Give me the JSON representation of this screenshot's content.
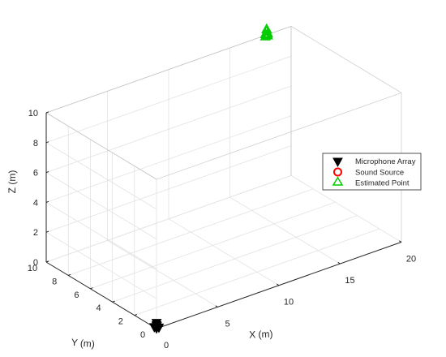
{
  "chart_data": {
    "type": "scatter",
    "subtype": "3d",
    "title": "",
    "xlabel": "X (m)",
    "ylabel": "Y (m)",
    "zlabel": "Z (m)",
    "xlim": [
      0,
      20
    ],
    "ylim": [
      0,
      10
    ],
    "zlim": [
      0,
      10
    ],
    "xticks": [
      "0",
      "5",
      "10",
      "15",
      "20"
    ],
    "yticks": [
      "0",
      "2",
      "4",
      "6",
      "8",
      "10"
    ],
    "zticks": [
      "0",
      "2",
      "4",
      "6",
      "8",
      "10"
    ],
    "grid": true,
    "box": true,
    "legend_position": "right",
    "series": [
      {
        "name": "Microphone Array",
        "marker": "triangle-down",
        "color": "#000000",
        "filled": true,
        "points": [
          {
            "x": 0.0,
            "y": 0.0,
            "z": 0.0
          },
          {
            "x": 0.2,
            "y": 0.0,
            "z": 0.0
          },
          {
            "x": 0.0,
            "y": 0.2,
            "z": 0.0
          },
          {
            "x": 0.2,
            "y": 0.2,
            "z": 0.0
          },
          {
            "x": 0.1,
            "y": 0.1,
            "z": 0.3
          },
          {
            "x": 0.1,
            "y": 0.1,
            "z": 0.15
          }
        ]
      },
      {
        "name": "Sound Source",
        "marker": "circle",
        "color": "#ff0000",
        "filled": false,
        "points": []
      },
      {
        "name": "Estimated Point",
        "marker": "triangle-up",
        "color": "#00cc00",
        "filled": false,
        "points": [
          {
            "x": 18.0,
            "y": 10.0,
            "z": 10.0
          },
          {
            "x": 18.1,
            "y": 10.0,
            "z": 10.1
          },
          {
            "x": 17.9,
            "y": 10.0,
            "z": 10.1
          },
          {
            "x": 18.0,
            "y": 10.0,
            "z": 10.25
          },
          {
            "x": 18.1,
            "y": 10.0,
            "z": 9.95
          },
          {
            "x": 17.9,
            "y": 10.0,
            "z": 9.95
          },
          {
            "x": 18.0,
            "y": 10.0,
            "z": 10.4
          }
        ]
      }
    ]
  }
}
